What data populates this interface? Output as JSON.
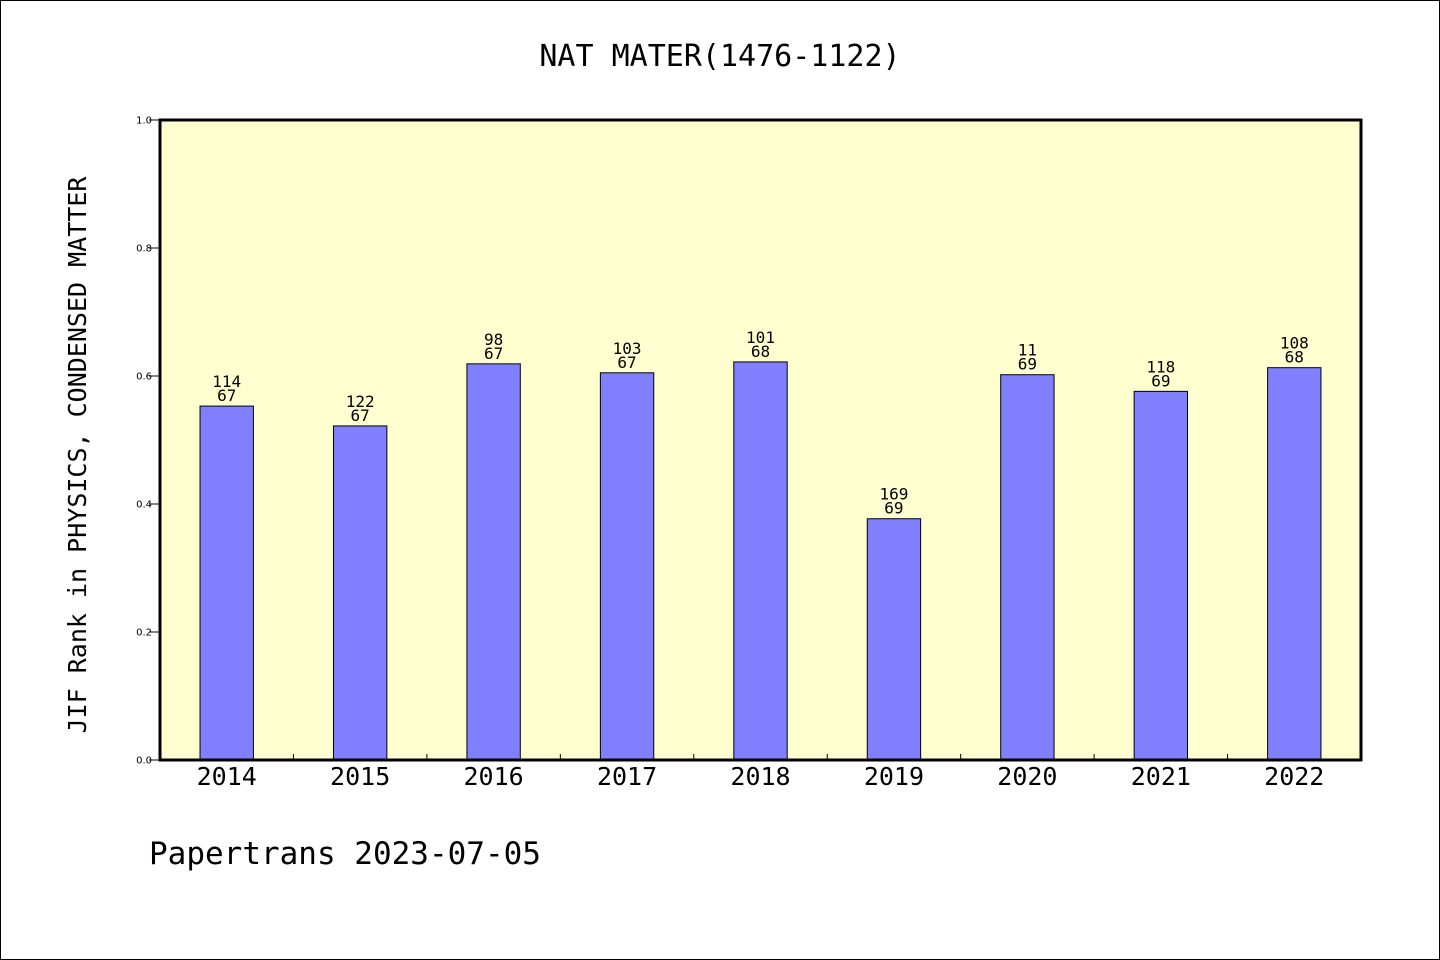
{
  "chart_data": {
    "type": "bar",
    "title": "NAT MATER(1476-1122)",
    "xlabel": "",
    "ylabel": "JIF Rank in PHYSICS, CONDENSED MATTER",
    "ylim": [
      0.0,
      1.0
    ],
    "yticks": [
      "0.0",
      "0.2",
      "0.4",
      "0.6",
      "0.8",
      "1.0"
    ],
    "categories": [
      "2014",
      "2015",
      "2016",
      "2017",
      "2018",
      "2019",
      "2020",
      "2021",
      "2022"
    ],
    "values": [
      0.553,
      0.522,
      0.619,
      0.605,
      0.622,
      0.377,
      0.602,
      0.576,
      0.613
    ],
    "label_top": [
      "114",
      "122",
      "98",
      "103",
      "101",
      "169",
      "11",
      "118",
      "108"
    ],
    "label_bottom": [
      "67",
      "67",
      "67",
      "67",
      "68",
      "69",
      "69",
      "69",
      "68"
    ],
    "colors": {
      "bar": "#8080ff",
      "plot_background": "#ffffd0"
    },
    "grid": false,
    "legend": "none"
  },
  "footer": {
    "text": "Papertrans 2023-07-05"
  }
}
